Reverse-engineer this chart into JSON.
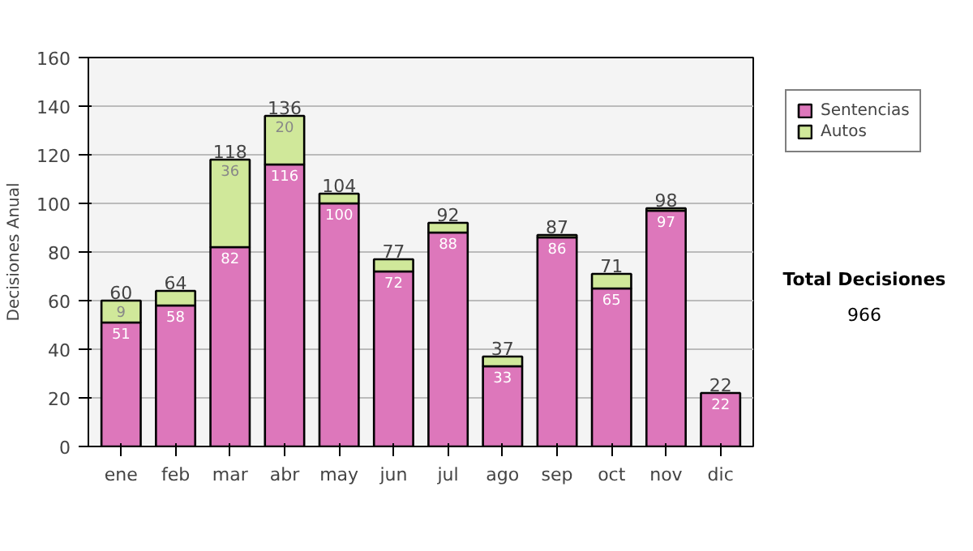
{
  "chart_data": {
    "type": "bar",
    "stacked": true,
    "ylabel": "Decisiones Anual",
    "categories": [
      "ene",
      "feb",
      "mar",
      "abr",
      "may",
      "jun",
      "jul",
      "ago",
      "sep",
      "oct",
      "nov",
      "dic"
    ],
    "series": [
      {
        "name": "Sentencias",
        "color": "#dd77bb",
        "values": [
          51,
          58,
          82,
          116,
          100,
          72,
          88,
          33,
          86,
          65,
          97,
          22
        ],
        "value_labels": [
          "51",
          "58",
          "82",
          "116",
          "100",
          "72",
          "88",
          "33",
          "86",
          "65",
          "97",
          "22"
        ]
      },
      {
        "name": "Autos",
        "color": "#d0e89a",
        "values": [
          9,
          6,
          36,
          20,
          4,
          5,
          4,
          4,
          1,
          6,
          1,
          0
        ],
        "value_labels": [
          "9",
          null,
          "36",
          "20",
          null,
          null,
          null,
          null,
          null,
          null,
          null,
          null
        ]
      }
    ],
    "totals": [
      "60",
      "64",
      "118",
      "136",
      "104",
      "77",
      "92",
      "37",
      "87",
      "71",
      "98",
      "22"
    ],
    "ylim": [
      0,
      160
    ],
    "yticks": [
      0,
      20,
      40,
      60,
      80,
      100,
      120,
      140,
      160
    ],
    "grid": "y",
    "legend": "right",
    "annotations": [
      "Total Decisiones",
      "966"
    ]
  }
}
